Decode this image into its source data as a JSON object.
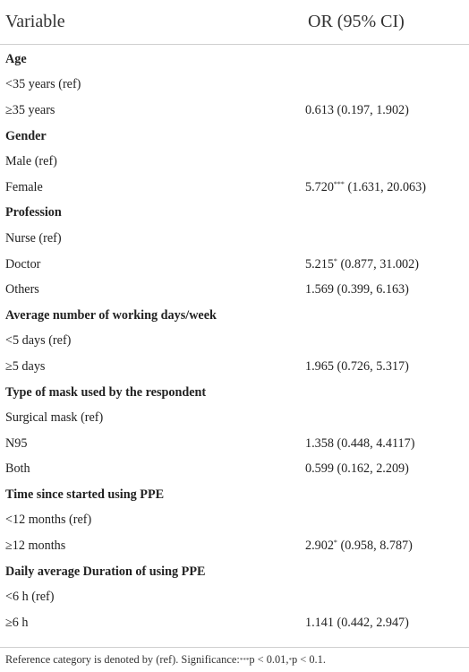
{
  "table": {
    "header": {
      "variable": "Variable",
      "or": "OR (95% CI)"
    },
    "rows": [
      {
        "label": "Age",
        "heading": true,
        "value": "",
        "sup": "",
        "ci": ""
      },
      {
        "label": "<35 years (ref)",
        "heading": false,
        "value": "",
        "sup": "",
        "ci": ""
      },
      {
        "label": "≥35 years",
        "heading": false,
        "value": "0.613",
        "sup": "",
        "ci": "(0.197, 1.902)"
      },
      {
        "label": "Gender",
        "heading": true,
        "value": "",
        "sup": "",
        "ci": ""
      },
      {
        "label": "Male (ref)",
        "heading": false,
        "value": "",
        "sup": "",
        "ci": ""
      },
      {
        "label": "Female",
        "heading": false,
        "value": "5.720",
        "sup": "***",
        "ci": "(1.631, 20.063)"
      },
      {
        "label": "Profession",
        "heading": true,
        "value": "",
        "sup": "",
        "ci": ""
      },
      {
        "label": "Nurse (ref)",
        "heading": false,
        "value": "",
        "sup": "",
        "ci": ""
      },
      {
        "label": "Doctor",
        "heading": false,
        "value": "5.215",
        "sup": "*",
        "ci": "(0.877, 31.002)"
      },
      {
        "label": "Others",
        "heading": false,
        "value": "1.569",
        "sup": "",
        "ci": "(0.399, 6.163)"
      },
      {
        "label": "Average number of working days/week",
        "heading": true,
        "value": "",
        "sup": "",
        "ci": ""
      },
      {
        "label": "<5 days (ref)",
        "heading": false,
        "value": "",
        "sup": "",
        "ci": ""
      },
      {
        "label": "≥5 days",
        "heading": false,
        "value": "1.965",
        "sup": "",
        "ci": "(0.726, 5.317)"
      },
      {
        "label": "Type of mask used by the respondent",
        "heading": true,
        "value": "",
        "sup": "",
        "ci": ""
      },
      {
        "label": "Surgical mask (ref)",
        "heading": false,
        "value": "",
        "sup": "",
        "ci": ""
      },
      {
        "label": "N95",
        "heading": false,
        "value": "1.358",
        "sup": "",
        "ci": "(0.448, 4.4117)"
      },
      {
        "label": "Both",
        "heading": false,
        "value": "0.599",
        "sup": "",
        "ci": "(0.162, 2.209)"
      },
      {
        "label": "Time since started using PPE",
        "heading": true,
        "value": "",
        "sup": "",
        "ci": ""
      },
      {
        "label": "<12 months (ref)",
        "heading": false,
        "value": "",
        "sup": "",
        "ci": ""
      },
      {
        "label": "≥12 months",
        "heading": false,
        "value": "2.902",
        "sup": "*",
        "ci": "(0.958, 8.787)"
      },
      {
        "label": "Daily average Duration of using PPE",
        "heading": true,
        "value": "",
        "sup": "",
        "ci": ""
      },
      {
        "label": "<6 h (ref)",
        "heading": false,
        "value": "",
        "sup": "",
        "ci": ""
      },
      {
        "label": "≥6 h",
        "heading": false,
        "value": "1.141",
        "sup": "",
        "ci": "(0.442, 2.947)"
      }
    ],
    "footer": {
      "prefix": "Reference category is denoted by (ref). Significance: ",
      "sup1": "***",
      "text1": "p < 0.01, ",
      "sup2": "*",
      "text2": "p < 0.1."
    }
  }
}
